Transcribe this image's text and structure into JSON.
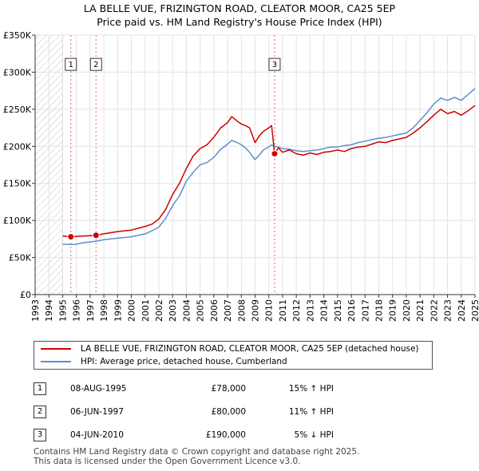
{
  "chart_data": {
    "type": "line",
    "title": "LA BELLE VUE, FRIZINGTON ROAD, CLEATOR MOOR, CA25 5EP",
    "subtitle": "Price paid vs. HM Land Registry's House Price Index (HPI)",
    "xlabel": "",
    "ylabel": "",
    "xlim": [
      1993,
      2025
    ],
    "ylim": [
      0,
      350000
    ],
    "x_ticks": [
      "1993",
      "1994",
      "1995",
      "1996",
      "1997",
      "1998",
      "1999",
      "2000",
      "2001",
      "2002",
      "2003",
      "2004",
      "2005",
      "2006",
      "2007",
      "2008",
      "2009",
      "2010",
      "2011",
      "2012",
      "2013",
      "2014",
      "2015",
      "2016",
      "2017",
      "2018",
      "2019",
      "2020",
      "2021",
      "2022",
      "2023",
      "2024",
      "2025"
    ],
    "y_ticks": [
      {
        "value": 0,
        "label": "£0"
      },
      {
        "value": 50000,
        "label": "£50K"
      },
      {
        "value": 100000,
        "label": "£100K"
      },
      {
        "value": 150000,
        "label": "£150K"
      },
      {
        "value": 200000,
        "label": "£200K"
      },
      {
        "value": 250000,
        "label": "£250K"
      },
      {
        "value": 300000,
        "label": "£300K"
      },
      {
        "value": 350000,
        "label": "£350K"
      }
    ],
    "grid": true,
    "hatched_until": 1995.0,
    "series": [
      {
        "name": "LA BELLE VUE, FRIZINGTON ROAD, CLEATOR MOOR, CA25 5EP (detached house)",
        "color": "#cc0000",
        "points": [
          [
            1995.0,
            79000
          ],
          [
            1995.6,
            78000
          ],
          [
            1996.0,
            78500
          ],
          [
            1996.5,
            79000
          ],
          [
            1997.0,
            79500
          ],
          [
            1997.43,
            80000
          ],
          [
            1998.0,
            82000
          ],
          [
            1999.0,
            85000
          ],
          [
            2000.0,
            87000
          ],
          [
            2001.0,
            92000
          ],
          [
            2001.5,
            95000
          ],
          [
            2002.0,
            102000
          ],
          [
            2002.5,
            115000
          ],
          [
            2003.0,
            135000
          ],
          [
            2003.5,
            150000
          ],
          [
            2004.0,
            170000
          ],
          [
            2004.5,
            187000
          ],
          [
            2005.0,
            197000
          ],
          [
            2005.5,
            202000
          ],
          [
            2006.0,
            212000
          ],
          [
            2006.5,
            225000
          ],
          [
            2007.0,
            232000
          ],
          [
            2007.3,
            240000
          ],
          [
            2007.7,
            234000
          ],
          [
            2008.0,
            230000
          ],
          [
            2008.3,
            228000
          ],
          [
            2008.6,
            225000
          ],
          [
            2009.0,
            205000
          ],
          [
            2009.3,
            214000
          ],
          [
            2009.6,
            220000
          ],
          [
            2010.0,
            225000
          ],
          [
            2010.2,
            228000
          ],
          [
            2010.42,
            190000
          ],
          [
            2010.7,
            198000
          ],
          [
            2011.0,
            192000
          ],
          [
            2011.5,
            195000
          ],
          [
            2012.0,
            190000
          ],
          [
            2012.5,
            188000
          ],
          [
            2013.0,
            191000
          ],
          [
            2013.5,
            189000
          ],
          [
            2014.0,
            192000
          ],
          [
            2014.5,
            193000
          ],
          [
            2015.0,
            195000
          ],
          [
            2015.5,
            193000
          ],
          [
            2016.0,
            197000
          ],
          [
            2016.5,
            199000
          ],
          [
            2017.0,
            200000
          ],
          [
            2017.5,
            203000
          ],
          [
            2018.0,
            206000
          ],
          [
            2018.5,
            205000
          ],
          [
            2019.0,
            208000
          ],
          [
            2019.5,
            210000
          ],
          [
            2020.0,
            212000
          ],
          [
            2020.5,
            218000
          ],
          [
            2021.0,
            225000
          ],
          [
            2021.5,
            233000
          ],
          [
            2022.0,
            242000
          ],
          [
            2022.5,
            250000
          ],
          [
            2023.0,
            244000
          ],
          [
            2023.5,
            247000
          ],
          [
            2024.0,
            242000
          ],
          [
            2024.5,
            248000
          ],
          [
            2025.0,
            255000
          ]
        ]
      },
      {
        "name": "HPI: Average price, detached house, Cumberland",
        "color": "#5b8fcc",
        "points": [
          [
            1995.0,
            68000
          ],
          [
            1995.6,
            67500
          ],
          [
            1996.0,
            68000
          ],
          [
            1996.5,
            70000
          ],
          [
            1997.0,
            71000
          ],
          [
            1997.43,
            72000
          ],
          [
            1998.0,
            74000
          ],
          [
            1999.0,
            76000
          ],
          [
            2000.0,
            78000
          ],
          [
            2001.0,
            82000
          ],
          [
            2001.5,
            86000
          ],
          [
            2002.0,
            91000
          ],
          [
            2002.5,
            103000
          ],
          [
            2003.0,
            120000
          ],
          [
            2003.5,
            133000
          ],
          [
            2004.0,
            153000
          ],
          [
            2004.5,
            165000
          ],
          [
            2005.0,
            175000
          ],
          [
            2005.5,
            178000
          ],
          [
            2006.0,
            185000
          ],
          [
            2006.5,
            196000
          ],
          [
            2007.0,
            203000
          ],
          [
            2007.3,
            208000
          ],
          [
            2007.7,
            205000
          ],
          [
            2008.0,
            202000
          ],
          [
            2008.3,
            198000
          ],
          [
            2008.6,
            192000
          ],
          [
            2009.0,
            182000
          ],
          [
            2009.3,
            188000
          ],
          [
            2009.6,
            195000
          ],
          [
            2010.0,
            199000
          ],
          [
            2010.2,
            202000
          ],
          [
            2010.42,
            200000
          ],
          [
            2010.7,
            199000
          ],
          [
            2011.0,
            197000
          ],
          [
            2011.5,
            196000
          ],
          [
            2012.0,
            194000
          ],
          [
            2012.5,
            193000
          ],
          [
            2013.0,
            194000
          ],
          [
            2013.5,
            195000
          ],
          [
            2014.0,
            197000
          ],
          [
            2014.5,
            199000
          ],
          [
            2015.0,
            199000
          ],
          [
            2015.5,
            201000
          ],
          [
            2016.0,
            202000
          ],
          [
            2016.5,
            205000
          ],
          [
            2017.0,
            207000
          ],
          [
            2017.5,
            209000
          ],
          [
            2018.0,
            211000
          ],
          [
            2018.5,
            212000
          ],
          [
            2019.0,
            214000
          ],
          [
            2019.5,
            216000
          ],
          [
            2020.0,
            218000
          ],
          [
            2020.5,
            225000
          ],
          [
            2021.0,
            235000
          ],
          [
            2021.5,
            245000
          ],
          [
            2022.0,
            257000
          ],
          [
            2022.5,
            265000
          ],
          [
            2023.0,
            262000
          ],
          [
            2023.5,
            266000
          ],
          [
            2024.0,
            262000
          ],
          [
            2024.5,
            270000
          ],
          [
            2025.0,
            278000
          ]
        ]
      }
    ],
    "sales": [
      {
        "id": "1",
        "x": 1995.6,
        "value": 78000
      },
      {
        "id": "2",
        "x": 1997.43,
        "value": 80000
      },
      {
        "id": "3",
        "x": 2010.42,
        "value": 190000
      }
    ]
  },
  "legend": {
    "property": "LA BELLE VUE, FRIZINGTON ROAD, CLEATOR MOOR, CA25 5EP (detached house)",
    "hpi": "HPI: Average price, detached house, Cumberland"
  },
  "transactions": [
    {
      "id": "1",
      "date": "08-AUG-1995",
      "price": "£78,000",
      "delta": "15% ↑ HPI"
    },
    {
      "id": "2",
      "date": "06-JUN-1997",
      "price": "£80,000",
      "delta": "11% ↑ HPI"
    },
    {
      "id": "3",
      "date": "04-JUN-2010",
      "price": "£190,000",
      "delta": "5% ↓ HPI"
    }
  ],
  "footer": {
    "line1": "Contains HM Land Registry data © Crown copyright and database right 2025.",
    "line2": "This data is licensed under the Open Government Licence v3.0."
  }
}
